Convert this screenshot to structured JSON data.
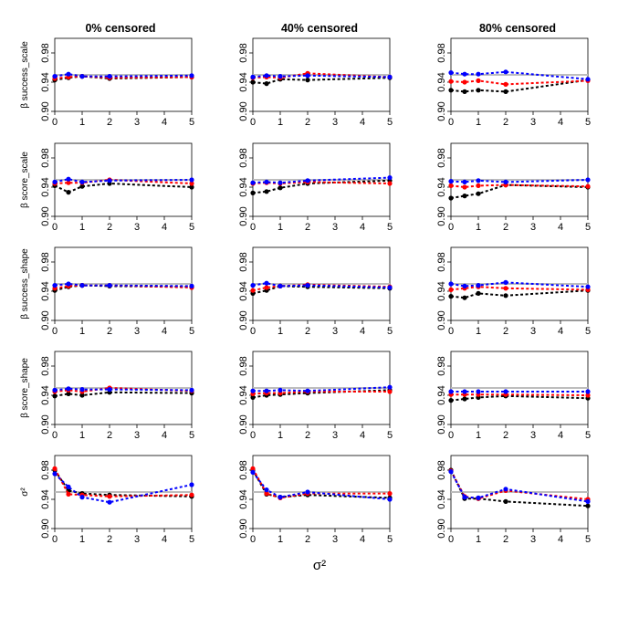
{
  "figure": {
    "column_titles": [
      "0% censored",
      "40% censored",
      "80% censored"
    ],
    "row_labels": [
      "β success_scale",
      "β score_scale",
      "β success_shape",
      "β score_shape",
      "σ²"
    ],
    "xlabel": "σ²"
  },
  "colors": {
    "reference_line": "#bdbdbd",
    "series_black": "#000000",
    "series_red": "#ff0000",
    "series_blue": "#0000ff"
  },
  "chart_data": {
    "type": "line",
    "layout": "5 rows x 3 columns small multiples",
    "x": [
      0,
      0.5,
      1,
      2,
      5
    ],
    "xlim": [
      0,
      5
    ],
    "xticks": [
      0,
      1,
      2,
      3,
      4,
      5
    ],
    "xtick_labels": [
      "0",
      "1",
      "2",
      "3",
      "4",
      "5"
    ],
    "ylim": [
      0.9,
      1.0
    ],
    "yticks": [
      0.9,
      0.94,
      0.98
    ],
    "ytick_labels": [
      "0.90",
      "0.94",
      "0.98"
    ],
    "reference_value": 0.95,
    "series_names": [
      "black",
      "red",
      "blue"
    ],
    "panels": [
      {
        "row": "β success_scale",
        "column": "0% censored",
        "series": [
          {
            "name": "black",
            "values": [
              0.943,
              0.946,
              0.948,
              0.945,
              0.947
            ]
          },
          {
            "name": "red",
            "values": [
              0.945,
              0.947,
              0.948,
              0.946,
              0.947
            ]
          },
          {
            "name": "blue",
            "values": [
              0.948,
              0.951,
              0.948,
              0.948,
              0.949
            ]
          }
        ]
      },
      {
        "row": "β success_scale",
        "column": "40% censored",
        "series": [
          {
            "name": "black",
            "values": [
              0.94,
              0.938,
              0.944,
              0.943,
              0.946
            ]
          },
          {
            "name": "red",
            "values": [
              0.946,
              0.947,
              0.946,
              0.952,
              0.947
            ]
          },
          {
            "name": "blue",
            "values": [
              0.947,
              0.949,
              0.948,
              0.949,
              0.947
            ]
          }
        ]
      },
      {
        "row": "β success_scale",
        "column": "80% censored",
        "series": [
          {
            "name": "black",
            "values": [
              0.929,
              0.927,
              0.929,
              0.927,
              0.943
            ]
          },
          {
            "name": "red",
            "values": [
              0.941,
              0.94,
              0.942,
              0.937,
              0.942
            ]
          },
          {
            "name": "blue",
            "values": [
              0.953,
              0.951,
              0.951,
              0.954,
              0.944
            ]
          }
        ]
      },
      {
        "row": "β score_scale",
        "column": "0% censored",
        "series": [
          {
            "name": "black",
            "values": [
              0.942,
              0.933,
              0.941,
              0.945,
              0.94
            ]
          },
          {
            "name": "red",
            "values": [
              0.945,
              0.946,
              0.946,
              0.95,
              0.945
            ]
          },
          {
            "name": "blue",
            "values": [
              0.947,
              0.951,
              0.947,
              0.949,
              0.95
            ]
          }
        ]
      },
      {
        "row": "β score_scale",
        "column": "40% censored",
        "series": [
          {
            "name": "black",
            "values": [
              0.932,
              0.934,
              0.939,
              0.945,
              0.949
            ]
          },
          {
            "name": "red",
            "values": [
              0.945,
              0.946,
              0.945,
              0.947,
              0.945
            ]
          },
          {
            "name": "blue",
            "values": [
              0.946,
              0.947,
              0.946,
              0.949,
              0.953
            ]
          }
        ]
      },
      {
        "row": "β score_scale",
        "column": "80% censored",
        "series": [
          {
            "name": "black",
            "values": [
              0.925,
              0.928,
              0.931,
              0.943,
              0.94
            ]
          },
          {
            "name": "red",
            "values": [
              0.942,
              0.94,
              0.942,
              0.943,
              0.941
            ]
          },
          {
            "name": "blue",
            "values": [
              0.948,
              0.947,
              0.949,
              0.947,
              0.95
            ]
          }
        ]
      },
      {
        "row": "β success_shape",
        "column": "0% censored",
        "series": [
          {
            "name": "black",
            "values": [
              0.941,
              0.946,
              0.948,
              0.947,
              0.946
            ]
          },
          {
            "name": "red",
            "values": [
              0.944,
              0.947,
              0.948,
              0.948,
              0.945
            ]
          },
          {
            "name": "blue",
            "values": [
              0.948,
              0.95,
              0.948,
              0.948,
              0.947
            ]
          }
        ]
      },
      {
        "row": "β success_shape",
        "column": "40% censored",
        "series": [
          {
            "name": "black",
            "values": [
              0.937,
              0.941,
              0.947,
              0.946,
              0.944
            ]
          },
          {
            "name": "red",
            "values": [
              0.941,
              0.945,
              0.947,
              0.949,
              0.946
            ]
          },
          {
            "name": "blue",
            "values": [
              0.948,
              0.951,
              0.947,
              0.948,
              0.945
            ]
          }
        ]
      },
      {
        "row": "β success_shape",
        "column": "80% censored",
        "series": [
          {
            "name": "black",
            "values": [
              0.933,
              0.931,
              0.937,
              0.934,
              0.941
            ]
          },
          {
            "name": "red",
            "values": [
              0.942,
              0.944,
              0.946,
              0.944,
              0.942
            ]
          },
          {
            "name": "blue",
            "values": [
              0.95,
              0.947,
              0.948,
              0.952,
              0.946
            ]
          }
        ]
      },
      {
        "row": "β score_shape",
        "column": "0% censored",
        "series": [
          {
            "name": "black",
            "values": [
              0.939,
              0.942,
              0.94,
              0.944,
              0.943
            ]
          },
          {
            "name": "red",
            "values": [
              0.945,
              0.947,
              0.945,
              0.95,
              0.946
            ]
          },
          {
            "name": "blue",
            "values": [
              0.947,
              0.949,
              0.948,
              0.948,
              0.947
            ]
          }
        ]
      },
      {
        "row": "β score_shape",
        "column": "40% censored",
        "series": [
          {
            "name": "black",
            "values": [
              0.937,
              0.94,
              0.941,
              0.943,
              0.947
            ]
          },
          {
            "name": "red",
            "values": [
              0.942,
              0.943,
              0.943,
              0.945,
              0.945
            ]
          },
          {
            "name": "blue",
            "values": [
              0.946,
              0.946,
              0.947,
              0.946,
              0.951
            ]
          }
        ]
      },
      {
        "row": "β score_shape",
        "column": "80% censored",
        "series": [
          {
            "name": "black",
            "values": [
              0.933,
              0.935,
              0.937,
              0.939,
              0.936
            ]
          },
          {
            "name": "red",
            "values": [
              0.941,
              0.941,
              0.941,
              0.941,
              0.94
            ]
          },
          {
            "name": "blue",
            "values": [
              0.945,
              0.945,
              0.945,
              0.945,
              0.945
            ]
          }
        ]
      },
      {
        "row": "σ²",
        "column": "0% censored",
        "series": [
          {
            "name": "black",
            "values": [
              0.98,
              0.952,
              0.948,
              0.946,
              0.944
            ]
          },
          {
            "name": "red",
            "values": [
              0.982,
              0.947,
              0.946,
              0.944,
              0.946
            ]
          },
          {
            "name": "blue",
            "values": [
              0.975,
              0.957,
              0.943,
              0.936,
              0.96
            ]
          }
        ]
      },
      {
        "row": "σ²",
        "column": "40% censored",
        "series": [
          {
            "name": "black",
            "values": [
              0.98,
              0.947,
              0.943,
              0.946,
              0.942
            ]
          },
          {
            "name": "red",
            "values": [
              0.982,
              0.948,
              0.942,
              0.948,
              0.948
            ]
          },
          {
            "name": "blue",
            "values": [
              0.977,
              0.953,
              0.943,
              0.95,
              0.94
            ]
          }
        ]
      },
      {
        "row": "σ²",
        "column": "80% censored",
        "series": [
          {
            "name": "black",
            "values": [
              0.98,
              0.941,
              0.941,
              0.937,
              0.931
            ]
          },
          {
            "name": "red",
            "values": [
              0.979,
              0.944,
              0.941,
              0.952,
              0.94
            ]
          },
          {
            "name": "blue",
            "values": [
              0.978,
              0.943,
              0.942,
              0.954,
              0.937
            ]
          }
        ]
      }
    ]
  }
}
